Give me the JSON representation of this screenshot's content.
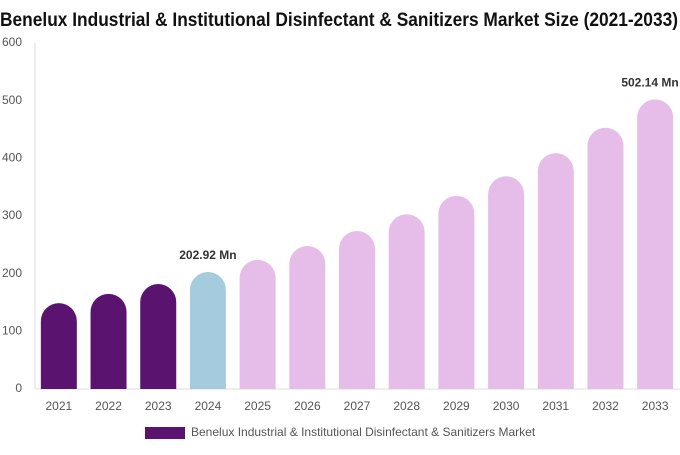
{
  "chart_data": {
    "type": "bar",
    "title": "Benelux Industrial & Institutional Disinfectant & Sanitizers Market Size (2021-2033)",
    "categories": [
      "2021",
      "2022",
      "2023",
      "2024",
      "2025",
      "2026",
      "2027",
      "2028",
      "2029",
      "2030",
      "2031",
      "2032",
      "2033"
    ],
    "series": [
      {
        "name": "Benelux Industrial & Institutional Disinfectant & Sanitizers Market",
        "color": "#5a1470",
        "colors": [
          "#5a1470",
          "#5a1470",
          "#5a1470",
          "#a5cbdf",
          "#e6bde9",
          "#e6bde9",
          "#e6bde9",
          "#e6bde9",
          "#e6bde9",
          "#e6bde9",
          "#e6bde9",
          "#e6bde9",
          "#e6bde9"
        ],
        "values": [
          149,
          165,
          182,
          202.92,
          224,
          248,
          274,
          303,
          335,
          369,
          409,
          453,
          502.14
        ],
        "value_labels": [
          null,
          null,
          null,
          "202.92 Mn",
          null,
          null,
          null,
          null,
          null,
          null,
          null,
          null,
          "502.14 Mn"
        ]
      }
    ],
    "ylim": [
      0,
      600
    ],
    "yticks": [
      0,
      100,
      200,
      300,
      400,
      500,
      600
    ],
    "grid": false
  }
}
